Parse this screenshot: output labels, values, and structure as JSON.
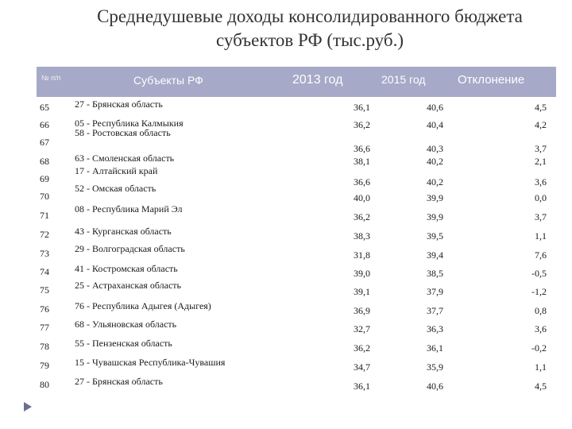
{
  "title": {
    "line1": "Среднедушевые доходы консолидированного бюджета",
    "line2": "субъектов РФ (тыс.руб.)"
  },
  "table": {
    "headers": {
      "num": "№ п/п",
      "subject": "Субъекты РФ",
      "y2013": "2013 год",
      "y2015": "2015 год",
      "deviation": "Отклонение"
    },
    "rows": [
      {
        "num": "65",
        "subject": "27 - Брянская область",
        "v2013": "36,1",
        "v2015": "40,6",
        "dev": "4,5"
      },
      {
        "num": "66",
        "subject": "05 - Республика Калмыкия",
        "v2013": "36,2",
        "v2015": "40,4",
        "dev": "4,2"
      },
      {
        "num": "67",
        "subject": "58 - Ростовская область",
        "v2013": "36,6",
        "v2015": "40,3",
        "dev": "3,7"
      },
      {
        "num": "68",
        "subject": "63 - Смоленская область",
        "v2013": "38,1",
        "v2015": "40,2",
        "dev": "2,1"
      },
      {
        "num": "69",
        "subject": "17 - Алтайский край",
        "v2013": "36,6",
        "v2015": "40,2",
        "dev": "3,6"
      },
      {
        "num": "70",
        "subject": "52 - Омская область",
        "v2013": "40,0",
        "v2015": "39,9",
        "dev": "0,0"
      },
      {
        "num": "71",
        "subject": "08 - Республика Марий Эл",
        "v2013": "36,2",
        "v2015": "39,9",
        "dev": "3,7"
      },
      {
        "num": "72",
        "subject": "43 - Курганская область",
        "v2013": "38,3",
        "v2015": "39,5",
        "dev": "1,1"
      },
      {
        "num": "73",
        "subject": "29 - Волгоградская область",
        "v2013": "31,8",
        "v2015": "39,4",
        "dev": "7,6"
      },
      {
        "num": "74",
        "subject": "41 - Костромская область",
        "v2013": "39,0",
        "v2015": "38,5",
        "dev": "-0,5"
      },
      {
        "num": "75",
        "subject": "25 - Астраханская область",
        "v2013": "39,1",
        "v2015": "37,9",
        "dev": "-1,2"
      },
      {
        "num": "76",
        "subject": "76 - Республика Адыгея (Адыгея)",
        "v2013": "36,9",
        "v2015": "37,7",
        "dev": "0,8"
      },
      {
        "num": "77",
        "subject": "68 - Ульяновская область",
        "v2013": "32,7",
        "v2015": "36,3",
        "dev": "3,6"
      },
      {
        "num": "78",
        "subject": "55 - Пензенская область",
        "v2013": "36,2",
        "v2015": "36,1",
        "dev": "-0,2"
      },
      {
        "num": "79",
        "subject": "15 - Чувашская Республика-Чувашия",
        "v2013": "34,7",
        "v2015": "35,9",
        "dev": "1,1"
      },
      {
        "num": "80",
        "subject": "27 - Брянская область",
        "v2013": "36,1",
        "v2015": "40,6",
        "dev": "4,5"
      }
    ]
  },
  "colors": {
    "header_bg": "#a6a9c8",
    "arrow": "#6b6f93"
  },
  "icons": {
    "slide_bullet": "triangle-arrow-icon"
  }
}
